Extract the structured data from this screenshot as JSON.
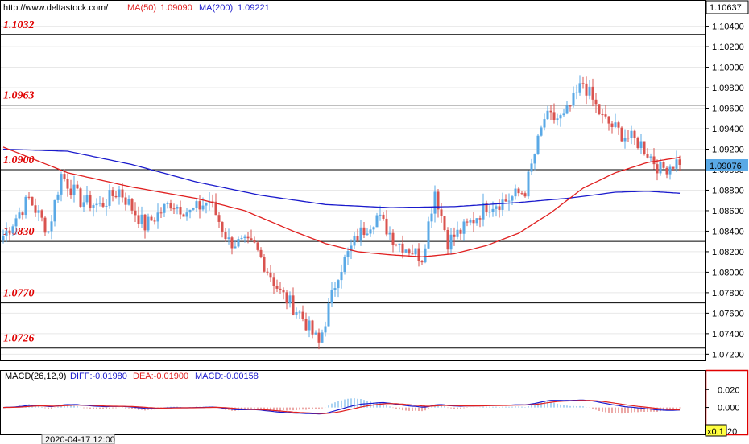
{
  "header": {
    "url": "http://www.deltastock.com/",
    "ma50_label": "MA(50)",
    "ma50_value": "1.09090",
    "ma200_label": "MA(200)",
    "ma200_value": "1.09221",
    "top_price": "1.10637"
  },
  "macd_header": {
    "name": "MACD(26,12,9)",
    "diff": "DIFF:-0.01980",
    "dea": "DEA:-0.01900",
    "macd": "MACD:-0.00158"
  },
  "footer": {
    "date": "2020-04-17 12:00",
    "zoom": "x0.1",
    "scale_tail": "20"
  },
  "colors": {
    "up": "#5aa9e6",
    "down": "#d9534f",
    "ma50": "#e02020",
    "ma200": "#1a1acc",
    "level_text": "#e00000",
    "current_price_bg": "#5aa9e6"
  },
  "chart_data": {
    "type": "candlestick",
    "current_price": "1.09076",
    "current_price_value": 1.09076,
    "ylim": [
      1.0714,
      1.1064
    ],
    "yticks": [
      "1.07200",
      "1.07400",
      "1.07600",
      "1.07800",
      "1.08000",
      "1.08200",
      "1.08400",
      "1.08600",
      "1.08800",
      "1.09000",
      "1.09200",
      "1.09400",
      "1.09600",
      "1.09800",
      "1.10000",
      "1.10200",
      "1.10400"
    ],
    "levels": [
      {
        "label": "1.1032",
        "value": 1.1032
      },
      {
        "label": "1.0963",
        "value": 1.0963
      },
      {
        "label": "1.0900",
        "value": 1.09
      },
      {
        "label": "1.0830",
        "value": 1.083
      },
      {
        "label": "1.0770",
        "value": 1.077
      },
      {
        "label": "1.0726",
        "value": 1.0726
      }
    ],
    "anchors": [
      [
        0,
        1.0835
      ],
      [
        8,
        1.0872
      ],
      [
        14,
        1.084
      ],
      [
        18,
        1.0895
      ],
      [
        24,
        1.087
      ],
      [
        30,
        1.0865
      ],
      [
        36,
        1.088
      ],
      [
        44,
        1.0845
      ],
      [
        52,
        1.0868
      ],
      [
        58,
        1.0858
      ],
      [
        64,
        1.087
      ],
      [
        70,
        1.083
      ],
      [
        78,
        1.0825
      ],
      [
        86,
        1.078
      ],
      [
        92,
        1.076
      ],
      [
        98,
        1.073
      ],
      [
        104,
        1.08
      ],
      [
        110,
        1.0835
      ],
      [
        116,
        1.0855
      ],
      [
        122,
        1.083
      ],
      [
        130,
        1.0815
      ],
      [
        134,
        1.088
      ],
      [
        138,
        1.083
      ],
      [
        144,
        1.0845
      ],
      [
        150,
        1.0865
      ],
      [
        156,
        1.087
      ],
      [
        162,
        1.088
      ],
      [
        168,
        1.095
      ],
      [
        174,
        1.095
      ],
      [
        180,
        1.0985
      ],
      [
        186,
        1.095
      ],
      [
        192,
        1.0935
      ],
      [
        198,
        1.0925
      ],
      [
        204,
        1.09
      ],
      [
        210,
        1.0909
      ]
    ],
    "ma50_points": [
      [
        0,
        1.0922
      ],
      [
        20,
        1.0897
      ],
      [
        40,
        1.0883
      ],
      [
        60,
        1.0872
      ],
      [
        75,
        1.086
      ],
      [
        90,
        1.084
      ],
      [
        100,
        1.0828
      ],
      [
        110,
        1.082
      ],
      [
        120,
        1.0817
      ],
      [
        130,
        1.0815
      ],
      [
        140,
        1.0818
      ],
      [
        150,
        1.0826
      ],
      [
        160,
        1.0838
      ],
      [
        170,
        1.0858
      ],
      [
        180,
        1.0882
      ],
      [
        190,
        1.0897
      ],
      [
        200,
        1.0907
      ],
      [
        210,
        1.0912
      ]
    ],
    "ma200_points": [
      [
        0,
        1.092
      ],
      [
        20,
        1.0918
      ],
      [
        40,
        1.0905
      ],
      [
        60,
        1.0888
      ],
      [
        80,
        1.0875
      ],
      [
        100,
        1.0866
      ],
      [
        120,
        1.0863
      ],
      [
        140,
        1.0864
      ],
      [
        160,
        1.0868
      ],
      [
        175,
        1.0872
      ],
      [
        190,
        1.0878
      ],
      [
        200,
        1.0879
      ],
      [
        210,
        1.0877
      ]
    ],
    "macd_yticks": [
      "0.020",
      "0.000"
    ],
    "macd_ylim": [
      -0.03,
      0.04
    ]
  }
}
